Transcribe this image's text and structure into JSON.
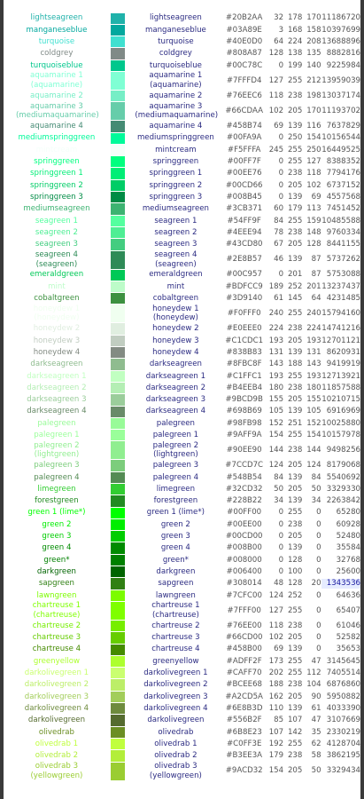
{
  "table": {
    "rows": [
      {
        "name": "lightseagreen",
        "hex": "#20B2AA",
        "r": 32,
        "g": 178,
        "b": 170,
        "decimal": 11186720
      },
      {
        "name": "manganeseblue",
        "hex": "#03A89E",
        "r": 3,
        "g": 168,
        "b": 158,
        "decimal": 10397699
      },
      {
        "name": "turquoise",
        "hex": "#40E0D0",
        "r": 64,
        "g": 224,
        "b": 208,
        "decimal": 13688896
      },
      {
        "name": "coldgrey",
        "hex": "#808A87",
        "r": 128,
        "g": 138,
        "b": 135,
        "decimal": 8882816
      },
      {
        "name": "turquoiseblue",
        "hex": "#00C78C",
        "r": 0,
        "g": 199,
        "b": 140,
        "decimal": 9225984
      },
      {
        "name": "aquamarine 1 (aquamarine)",
        "hex": "#7FFFD4",
        "r": 127,
        "g": 255,
        "b": 212,
        "decimal": 13959039
      },
      {
        "name": "aquamarine 2",
        "hex": "#76EEC6",
        "r": 118,
        "g": 238,
        "b": 198,
        "decimal": 13037174
      },
      {
        "name": "aquamarine 3 (mediumaquamarine)",
        "hex": "#66CDAA",
        "r": 102,
        "g": 205,
        "b": 170,
        "decimal": 11193702
      },
      {
        "name": "aquamarine 4",
        "hex": "#458B74",
        "r": 69,
        "g": 139,
        "b": 116,
        "decimal": 7637829
      },
      {
        "name": "mediumspringgreen",
        "hex": "#00FA9A",
        "r": 0,
        "g": 250,
        "b": 154,
        "decimal": 10156544
      },
      {
        "name": "mintcream",
        "hex": "#F5FFFA",
        "r": 245,
        "g": 255,
        "b": 250,
        "decimal": 16449525
      },
      {
        "name": "springgreen",
        "hex": "#00FF7F",
        "r": 0,
        "g": 255,
        "b": 127,
        "decimal": 8388352
      },
      {
        "name": "springgreen 1",
        "hex": "#00EE76",
        "r": 0,
        "g": 238,
        "b": 118,
        "decimal": 7794176
      },
      {
        "name": "springgreen 2",
        "hex": "#00CD66",
        "r": 0,
        "g": 205,
        "b": 102,
        "decimal": 6737152
      },
      {
        "name": "springgreen 3",
        "hex": "#008B45",
        "r": 0,
        "g": 139,
        "b": 69,
        "decimal": 4557568
      },
      {
        "name": "mediumseagreen",
        "hex": "#3CB371",
        "r": 60,
        "g": 179,
        "b": 113,
        "decimal": 7451452
      },
      {
        "name": "seagreen 1",
        "hex": "#54FF9F",
        "r": 84,
        "g": 255,
        "b": 159,
        "decimal": 10485588
      },
      {
        "name": "seagreen 2",
        "hex": "#4EEE94",
        "r": 78,
        "g": 238,
        "b": 148,
        "decimal": 9760334
      },
      {
        "name": "seagreen 3",
        "hex": "#43CD80",
        "r": 67,
        "g": 205,
        "b": 128,
        "decimal": 8441155
      },
      {
        "name": "seagreen 4 (seagreen)",
        "hex": "#2E8B57",
        "r": 46,
        "g": 139,
        "b": 87,
        "decimal": 5737262
      },
      {
        "name": "emeraldgreen",
        "hex": "#00C957",
        "r": 0,
        "g": 201,
        "b": 87,
        "decimal": 5753088
      },
      {
        "name": "mint",
        "hex": "#BDFCC9",
        "r": 189,
        "g": 252,
        "b": 201,
        "decimal": 13237437
      },
      {
        "name": "cobaltgreen",
        "hex": "#3D9140",
        "r": 61,
        "g": 145,
        "b": 64,
        "decimal": 4231485
      },
      {
        "name": "honeydew 1 (honeydew)",
        "hex": "#F0FFF0",
        "r": 240,
        "g": 255,
        "b": 240,
        "decimal": 15794160
      },
      {
        "name": "honeydew 2",
        "hex": "#E0EEE0",
        "r": 224,
        "g": 238,
        "b": 224,
        "decimal": 14741216
      },
      {
        "name": "honeydew 3",
        "hex": "#C1CDC1",
        "r": 193,
        "g": 205,
        "b": 193,
        "decimal": 12701121
      },
      {
        "name": "honeydew 4",
        "hex": "#838B83",
        "r": 131,
        "g": 139,
        "b": 131,
        "decimal": 8620931
      },
      {
        "name": "darkseagreen",
        "hex": "#8FBC8F",
        "r": 143,
        "g": 188,
        "b": 143,
        "decimal": 9419919
      },
      {
        "name": "darkseagreen 1",
        "hex": "#C1FFC1",
        "r": 193,
        "g": 255,
        "b": 193,
        "decimal": 12713921
      },
      {
        "name": "darkseagreen 2",
        "hex": "#B4EEB4",
        "r": 180,
        "g": 238,
        "b": 180,
        "decimal": 11857588
      },
      {
        "name": "darkseagreen 3",
        "hex": "#9BCD9B",
        "r": 155,
        "g": 205,
        "b": 155,
        "decimal": 10210715
      },
      {
        "name": "darkseagreen 4",
        "hex": "#698B69",
        "r": 105,
        "g": 139,
        "b": 105,
        "decimal": 6916969
      },
      {
        "name": "palegreen",
        "hex": "#98FB98",
        "r": 152,
        "g": 251,
        "b": 152,
        "decimal": 10025880
      },
      {
        "name": "palegreen 1",
        "hex": "#9AFF9A",
        "r": 154,
        "g": 255,
        "b": 154,
        "decimal": 10157978
      },
      {
        "name": "palegreen 2 (lightgreen)",
        "hex": "#90EE90",
        "r": 144,
        "g": 238,
        "b": 144,
        "decimal": 9498256
      },
      {
        "name": "palegreen 3",
        "hex": "#7CCD7C",
        "r": 124,
        "g": 205,
        "b": 124,
        "decimal": 8179068
      },
      {
        "name": "palegreen 4",
        "hex": "#548B54",
        "r": 84,
        "g": 139,
        "b": 84,
        "decimal": 5540692
      },
      {
        "name": "limegreen",
        "hex": "#32CD32",
        "r": 50,
        "g": 205,
        "b": 50,
        "decimal": 3329330
      },
      {
        "name": "forestgreen",
        "hex": "#228B22",
        "r": 34,
        "g": 139,
        "b": 34,
        "decimal": 2263842
      },
      {
        "name": "green 1 (lime*)",
        "hex": "#00FF00",
        "r": 0,
        "g": 255,
        "b": 0,
        "decimal": 65280
      },
      {
        "name": "green 2",
        "hex": "#00EE00",
        "r": 0,
        "g": 238,
        "b": 0,
        "decimal": 60928
      },
      {
        "name": "green 3",
        "hex": "#00CD00",
        "r": 0,
        "g": 205,
        "b": 0,
        "decimal": 52480
      },
      {
        "name": "green 4",
        "hex": "#008B00",
        "r": 0,
        "g": 139,
        "b": 0,
        "decimal": 35584
      },
      {
        "name": "green*",
        "hex": "#008000",
        "r": 0,
        "g": 128,
        "b": 0,
        "decimal": 32768
      },
      {
        "name": "darkgreen",
        "hex": "#006400",
        "r": 0,
        "g": 100,
        "b": 0,
        "decimal": 25600
      },
      {
        "name": "sapgreen",
        "hex": "#308014",
        "r": 48,
        "g": 128,
        "b": 20,
        "decimal": 1343536,
        "highlighted": true
      },
      {
        "name": "lawngreen",
        "hex": "#7CFC00",
        "r": 124,
        "g": 252,
        "b": 0,
        "decimal": 64636
      },
      {
        "name": "chartreuse 1 (chartreuse)",
        "hex": "#7FFF00",
        "r": 127,
        "g": 255,
        "b": 0,
        "decimal": 65407
      },
      {
        "name": "chartreuse 2",
        "hex": "#76EE00",
        "r": 118,
        "g": 238,
        "b": 0,
        "decimal": 61046
      },
      {
        "name": "chartreuse 3",
        "hex": "#66CD00",
        "r": 102,
        "g": 205,
        "b": 0,
        "decimal": 52582
      },
      {
        "name": "chartreuse 4",
        "hex": "#458B00",
        "r": 69,
        "g": 139,
        "b": 0,
        "decimal": 35653
      },
      {
        "name": "greenyellow",
        "hex": "#ADFF2F",
        "r": 173,
        "g": 255,
        "b": 47,
        "decimal": 3145645
      },
      {
        "name": "darkolivegreen 1",
        "hex": "#CAFF70",
        "r": 202,
        "g": 255,
        "b": 112,
        "decimal": 7405514
      },
      {
        "name": "darkolivegreen 2",
        "hex": "#BCEE68",
        "r": 188,
        "g": 238,
        "b": 104,
        "decimal": 6876860
      },
      {
        "name": "darkolivegreen 3",
        "hex": "#A2CD5A",
        "r": 162,
        "g": 205,
        "b": 90,
        "decimal": 5950882
      },
      {
        "name": "darkolivegreen 4",
        "hex": "#6E8B3D",
        "r": 110,
        "g": 139,
        "b": 61,
        "decimal": 4033390
      },
      {
        "name": "darkolivegreen",
        "hex": "#556B2F",
        "r": 85,
        "g": 107,
        "b": 47,
        "decimal": 3107669
      },
      {
        "name": "olivedrab",
        "hex": "#6B8E23",
        "r": 107,
        "g": 142,
        "b": 35,
        "decimal": 2330219
      },
      {
        "name": "olivedrab 1",
        "hex": "#C0FF3E",
        "r": 192,
        "g": 255,
        "b": 62,
        "decimal": 4128704
      },
      {
        "name": "olivedrab 2",
        "hex": "#B3EE3A",
        "r": 179,
        "g": 238,
        "b": 58,
        "decimal": 3862195
      },
      {
        "name": "olivedrab 3 (yellowgreen)",
        "hex": "#9ACD32",
        "r": 154,
        "g": 205,
        "b": 50,
        "decimal": 3329434
      }
    ]
  }
}
